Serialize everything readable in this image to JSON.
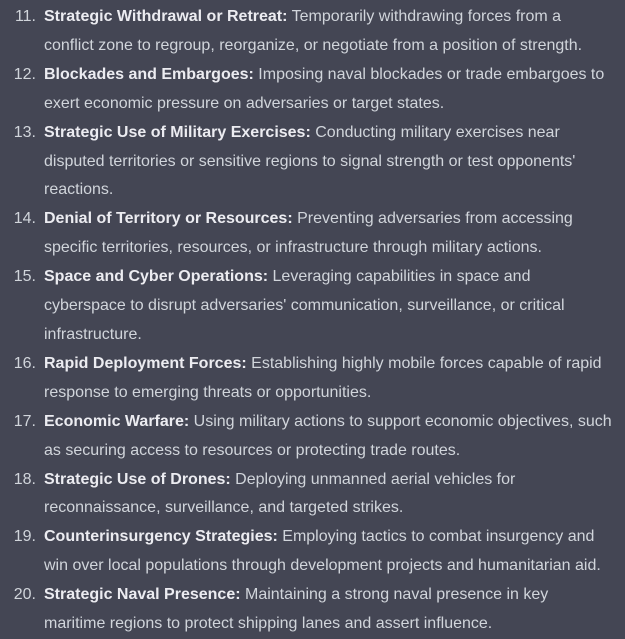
{
  "page": {
    "background_color": "#444654",
    "body_text_color": "#D1D5DB",
    "bold_text_color": "#ECECF1"
  },
  "list": {
    "start": 11,
    "items": [
      {
        "number": "11.",
        "title": "Strategic Withdrawal or Retreat:",
        "description": "Temporarily withdrawing forces from a conflict zone to regroup, reorganize, or negotiate from a position of strength."
      },
      {
        "number": "12.",
        "title": "Blockades and Embargoes:",
        "description": "Imposing naval blockades or trade embargoes to exert economic pressure on adversaries or target states."
      },
      {
        "number": "13.",
        "title": "Strategic Use of Military Exercises:",
        "description": "Conducting military exercises near disputed territories or sensitive regions to signal strength or test opponents' reactions."
      },
      {
        "number": "14.",
        "title": "Denial of Territory or Resources:",
        "description": "Preventing adversaries from accessing specific territories, resources, or infrastructure through military actions."
      },
      {
        "number": "15.",
        "title": "Space and Cyber Operations:",
        "description": "Leveraging capabilities in space and cyberspace to disrupt adversaries' communication, surveillance, or critical infrastructure."
      },
      {
        "number": "16.",
        "title": "Rapid Deployment Forces:",
        "description": "Establishing highly mobile forces capable of rapid response to emerging threats or opportunities."
      },
      {
        "number": "17.",
        "title": "Economic Warfare:",
        "description": "Using military actions to support economic objectives, such as securing access to resources or protecting trade routes."
      },
      {
        "number": "18.",
        "title": "Strategic Use of Drones:",
        "description": "Deploying unmanned aerial vehicles for reconnaissance, surveillance, and targeted strikes."
      },
      {
        "number": "19.",
        "title": "Counterinsurgency Strategies:",
        "description": "Employing tactics to combat insurgency and win over local populations through development projects and humanitarian aid."
      },
      {
        "number": "20.",
        "title": "Strategic Naval Presence:",
        "description": "Maintaining a strong naval presence in key maritime regions to protect shipping lanes and assert influence."
      }
    ]
  }
}
